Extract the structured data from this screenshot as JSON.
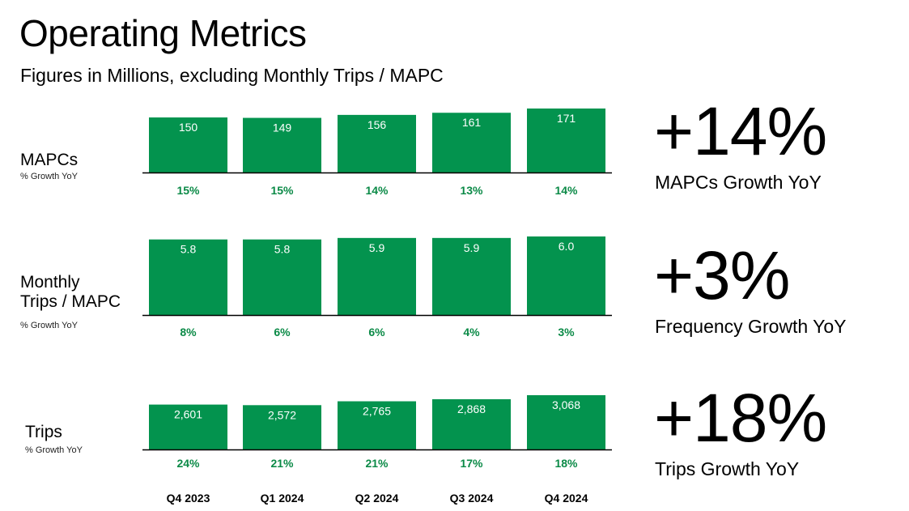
{
  "header": {
    "title": "Operating Metrics",
    "subtitle": "Figures in Millions, excluding Monthly Trips / MAPC"
  },
  "colors": {
    "bar": "#03934e",
    "growth_text": "#0b8a47",
    "axis": "#000000"
  },
  "rows": [
    {
      "label": "MAPCs",
      "growth_caption": "% Growth YoY",
      "kpi_value": "+14%",
      "kpi_label": "MAPCs Growth YoY"
    },
    {
      "label_line1": "Monthly",
      "label_line2": "Trips / MAPC",
      "growth_caption": "% Growth YoY",
      "kpi_value": "+3%",
      "kpi_label": "Frequency Growth YoY"
    },
    {
      "label": "Trips",
      "growth_caption": "% Growth YoY",
      "kpi_value": "+18%",
      "kpi_label": "Trips Growth YoY"
    }
  ],
  "chart_data": [
    {
      "type": "bar",
      "categories": [
        "Q4 2023",
        "Q1 2024",
        "Q2 2024",
        "Q3 2024",
        "Q4 2024"
      ],
      "values": [
        150,
        149,
        156,
        161,
        171
      ],
      "value_labels": [
        "150",
        "149",
        "156",
        "161",
        "171"
      ],
      "growth_labels": [
        "15%",
        "15%",
        "14%",
        "13%",
        "14%"
      ]
    },
    {
      "type": "bar",
      "categories": [
        "Q4 2023",
        "Q1 2024",
        "Q2 2024",
        "Q3 2024",
        "Q4 2024"
      ],
      "values": [
        5.8,
        5.8,
        5.9,
        5.9,
        6.0
      ],
      "value_labels": [
        "5.8",
        "5.8",
        "5.9",
        "5.9",
        "6.0"
      ],
      "growth_labels": [
        "8%",
        "6%",
        "6%",
        "4%",
        "3%"
      ]
    },
    {
      "type": "bar",
      "categories": [
        "Q4 2023",
        "Q1 2024",
        "Q2 2024",
        "Q3 2024",
        "Q4 2024"
      ],
      "values": [
        2601,
        2572,
        2765,
        2868,
        3068
      ],
      "value_labels": [
        "2,601",
        "2,572",
        "2,765",
        "2,868",
        "3,068"
      ],
      "growth_labels": [
        "24%",
        "21%",
        "21%",
        "17%",
        "18%"
      ]
    }
  ],
  "x_axis_labels": [
    "Q4 2023",
    "Q1 2024",
    "Q2 2024",
    "Q3 2024",
    "Q4 2024"
  ]
}
